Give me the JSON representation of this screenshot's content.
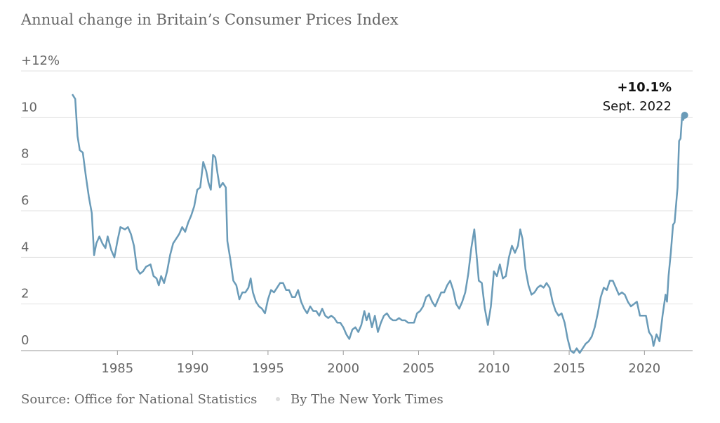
{
  "chart_data": {
    "type": "line",
    "title": "Annual change in Britain’s Consumer Prices Index",
    "source": "Source: Office for National Statistics",
    "byline": "By The New York Times",
    "annotation": {
      "label": "+10.1%",
      "date": "Sept. 2022"
    },
    "color": "#6a9bb8",
    "xlim": [
      1978.6,
      2023.2
    ],
    "xticks": [
      1985,
      1990,
      1995,
      2000,
      2005,
      2010,
      2015,
      2020
    ],
    "ylim": [
      0,
      12
    ],
    "yticks": [
      0,
      2,
      4,
      6,
      8,
      10,
      {
        "value": 12,
        "label": "+12%"
      }
    ],
    "grid": true,
    "x": [
      1982.0,
      1982.2,
      1982.35,
      1982.5,
      1982.7,
      1982.9,
      1983.1,
      1983.3,
      1983.45,
      1983.6,
      1983.8,
      1984.0,
      1984.2,
      1984.35,
      1984.6,
      1984.8,
      1985.0,
      1985.2,
      1985.5,
      1985.7,
      1985.9,
      1986.1,
      1986.3,
      1986.5,
      1986.7,
      1986.9,
      1987.2,
      1987.4,
      1987.6,
      1987.75,
      1987.9,
      1988.1,
      1988.3,
      1988.5,
      1988.7,
      1988.9,
      1989.1,
      1989.3,
      1989.5,
      1989.7,
      1989.9,
      1990.1,
      1990.3,
      1990.5,
      1990.7,
      1990.9,
      1991.05,
      1991.2,
      1991.35,
      1991.5,
      1991.65,
      1991.8,
      1992.0,
      1992.2,
      1992.3,
      1992.5,
      1992.7,
      1992.9,
      1993.1,
      1993.3,
      1993.5,
      1993.7,
      1993.85,
      1994.0,
      1994.2,
      1994.4,
      1994.6,
      1994.8,
      1995.0,
      1995.2,
      1995.4,
      1995.6,
      1995.8,
      1996.0,
      1996.2,
      1996.4,
      1996.6,
      1996.8,
      1997.0,
      1997.2,
      1997.4,
      1997.6,
      1997.8,
      1998.0,
      1998.2,
      1998.4,
      1998.6,
      1998.8,
      1999.0,
      1999.2,
      1999.4,
      1999.6,
      1999.8,
      2000.0,
      2000.2,
      2000.4,
      2000.6,
      2000.8,
      2001.0,
      2001.2,
      2001.4,
      2001.55,
      2001.7,
      2001.9,
      2002.1,
      2002.3,
      2002.5,
      2002.7,
      2002.9,
      2003.1,
      2003.3,
      2003.5,
      2003.7,
      2003.9,
      2004.1,
      2004.3,
      2004.5,
      2004.7,
      2004.9,
      2005.1,
      2005.3,
      2005.5,
      2005.7,
      2005.9,
      2006.1,
      2006.3,
      2006.5,
      2006.7,
      2006.9,
      2007.1,
      2007.3,
      2007.5,
      2007.7,
      2007.9,
      2008.1,
      2008.3,
      2008.5,
      2008.7,
      2008.85,
      2009.0,
      2009.2,
      2009.4,
      2009.6,
      2009.8,
      2010.0,
      2010.2,
      2010.4,
      2010.6,
      2010.8,
      2011.0,
      2011.2,
      2011.4,
      2011.6,
      2011.75,
      2011.9,
      2012.1,
      2012.3,
      2012.5,
      2012.7,
      2012.9,
      2013.1,
      2013.3,
      2013.5,
      2013.7,
      2013.9,
      2014.1,
      2014.3,
      2014.5,
      2014.7,
      2014.9,
      2015.1,
      2015.3,
      2015.5,
      2015.7,
      2015.9,
      2016.1,
      2016.3,
      2016.5,
      2016.7,
      2016.9,
      2017.1,
      2017.3,
      2017.5,
      2017.7,
      2017.9,
      2018.1,
      2018.3,
      2018.5,
      2018.7,
      2018.9,
      2019.1,
      2019.3,
      2019.5,
      2019.7,
      2019.9,
      2020.1,
      2020.3,
      2020.5,
      2020.6,
      2020.8,
      2021.0,
      2021.2,
      2021.4,
      2021.5,
      2021.6,
      2021.75,
      2021.9,
      2022.0,
      2022.2,
      2022.3,
      2022.4,
      2022.5,
      2022.58,
      2022.67
    ],
    "values": [
      11.0,
      10.8,
      9.2,
      8.6,
      8.5,
      7.5,
      6.6,
      5.9,
      4.1,
      4.6,
      4.9,
      4.6,
      4.4,
      4.9,
      4.3,
      4.0,
      4.7,
      5.3,
      5.2,
      5.3,
      5.0,
      4.5,
      3.5,
      3.3,
      3.4,
      3.6,
      3.7,
      3.2,
      3.1,
      2.8,
      3.2,
      2.9,
      3.4,
      4.1,
      4.6,
      4.8,
      5.0,
      5.3,
      5.1,
      5.5,
      5.8,
      6.2,
      6.9,
      7.0,
      8.1,
      7.7,
      7.2,
      6.9,
      8.4,
      8.3,
      7.6,
      7.0,
      7.2,
      7.0,
      4.7,
      3.9,
      3.0,
      2.8,
      2.2,
      2.5,
      2.5,
      2.7,
      3.1,
      2.5,
      2.1,
      1.9,
      1.8,
      1.6,
      2.2,
      2.6,
      2.5,
      2.7,
      2.9,
      2.9,
      2.6,
      2.6,
      2.3,
      2.3,
      2.6,
      2.1,
      1.8,
      1.6,
      1.9,
      1.7,
      1.7,
      1.5,
      1.8,
      1.5,
      1.4,
      1.5,
      1.4,
      1.2,
      1.2,
      1.0,
      0.7,
      0.5,
      0.9,
      1.0,
      0.8,
      1.1,
      1.7,
      1.3,
      1.6,
      1.0,
      1.5,
      0.8,
      1.2,
      1.5,
      1.6,
      1.4,
      1.3,
      1.3,
      1.4,
      1.3,
      1.3,
      1.2,
      1.2,
      1.2,
      1.6,
      1.7,
      1.9,
      2.3,
      2.4,
      2.1,
      1.9,
      2.2,
      2.5,
      2.5,
      2.8,
      3.0,
      2.6,
      2.0,
      1.8,
      2.1,
      2.5,
      3.3,
      4.4,
      5.2,
      4.1,
      3.0,
      2.9,
      1.8,
      1.1,
      1.9,
      3.4,
      3.2,
      3.7,
      3.1,
      3.2,
      4.0,
      4.5,
      4.2,
      4.5,
      5.2,
      4.8,
      3.5,
      2.8,
      2.4,
      2.5,
      2.7,
      2.8,
      2.7,
      2.9,
      2.7,
      2.1,
      1.7,
      1.5,
      1.6,
      1.2,
      0.5,
      0.0,
      -0.1,
      0.1,
      -0.1,
      0.1,
      0.3,
      0.4,
      0.6,
      1.0,
      1.6,
      2.3,
      2.7,
      2.6,
      3.0,
      3.0,
      2.7,
      2.4,
      2.5,
      2.4,
      2.1,
      1.9,
      2.0,
      2.1,
      1.5,
      1.5,
      1.5,
      0.8,
      0.6,
      0.2,
      0.7,
      0.4,
      1.5,
      2.4,
      2.1,
      3.2,
      4.2,
      5.4,
      5.5,
      7.0,
      9.0,
      9.1,
      10.1,
      9.9,
      10.1
    ]
  }
}
